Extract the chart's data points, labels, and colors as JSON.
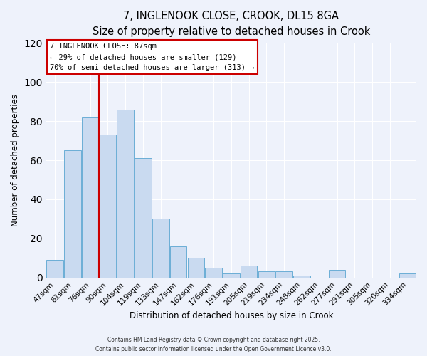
{
  "title": "7, INGLENOOK CLOSE, CROOK, DL15 8GA",
  "subtitle": "Size of property relative to detached houses in Crook",
  "xlabel": "Distribution of detached houses by size in Crook",
  "ylabel": "Number of detached properties",
  "bar_labels": [
    "47sqm",
    "61sqm",
    "76sqm",
    "90sqm",
    "104sqm",
    "119sqm",
    "133sqm",
    "147sqm",
    "162sqm",
    "176sqm",
    "191sqm",
    "205sqm",
    "219sqm",
    "234sqm",
    "248sqm",
    "262sqm",
    "277sqm",
    "291sqm",
    "305sqm",
    "320sqm",
    "334sqm"
  ],
  "bar_values": [
    9,
    65,
    82,
    73,
    86,
    61,
    30,
    16,
    10,
    5,
    2,
    6,
    3,
    3,
    1,
    0,
    4,
    0,
    0,
    0,
    2
  ],
  "bar_color": "#c9daf0",
  "bar_edge_color": "#6baed6",
  "vline_color": "#cc0000",
  "ylim": [
    0,
    120
  ],
  "yticks": [
    0,
    20,
    40,
    60,
    80,
    100,
    120
  ],
  "annotation_title": "7 INGLENOOK CLOSE: 87sqm",
  "annotation_line1": "← 29% of detached houses are smaller (129)",
  "annotation_line2": "70% of semi-detached houses are larger (313) →",
  "background_color": "#eef2fb",
  "grid_color": "#ffffff",
  "footer1": "Contains HM Land Registry data © Crown copyright and database right 2025.",
  "footer2": "Contains public sector information licensed under the Open Government Licence v3.0."
}
